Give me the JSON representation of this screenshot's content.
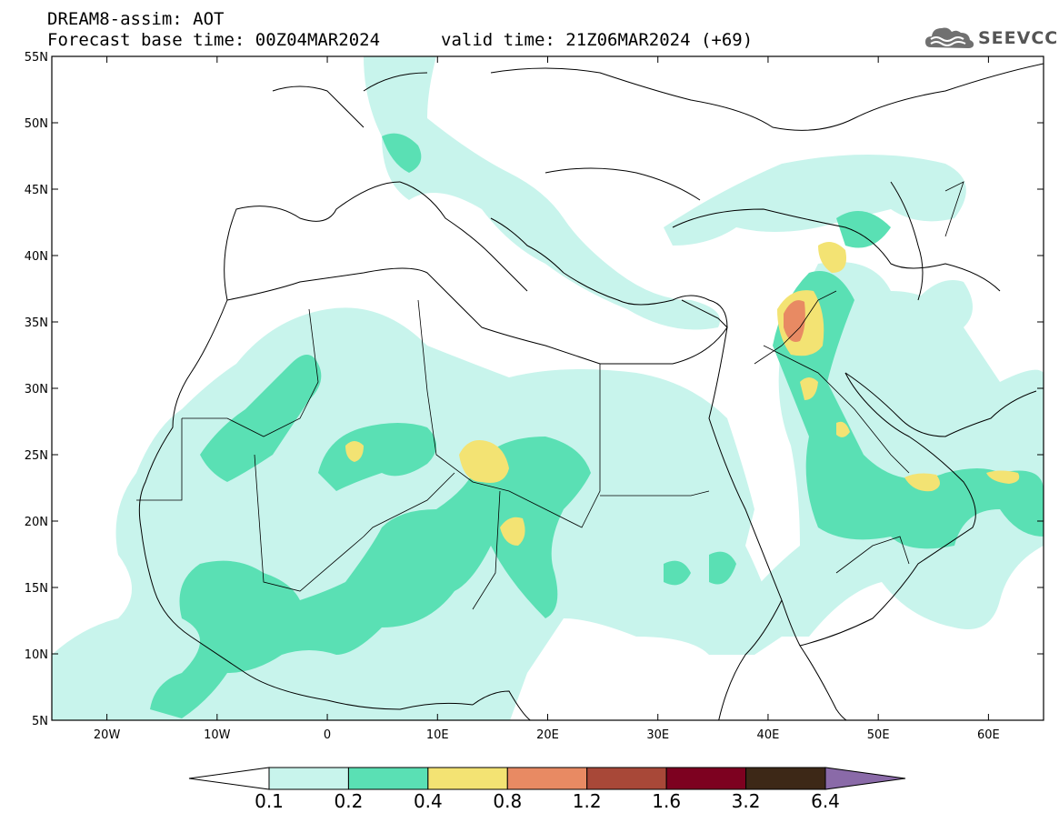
{
  "title_line1": "DREAM8-assim: AOT",
  "title_line2a": "Forecast base time: 00Z04MAR2024",
  "title_line2b": "valid time: 21Z06MAR2024 (+69)",
  "logo": {
    "text": "SEEVCCC",
    "icon": "cloud-icon"
  },
  "map": {
    "lon_range": [
      -25,
      65
    ],
    "lat_range": [
      5,
      55
    ],
    "lat_ticks": [
      {
        "value": 55,
        "label": "55N"
      },
      {
        "value": 50,
        "label": "50N"
      },
      {
        "value": 45,
        "label": "45N"
      },
      {
        "value": 40,
        "label": "40N"
      },
      {
        "value": 35,
        "label": "35N"
      },
      {
        "value": 30,
        "label": "30N"
      },
      {
        "value": 25,
        "label": "25N"
      },
      {
        "value": 20,
        "label": "20N"
      },
      {
        "value": 15,
        "label": "15N"
      },
      {
        "value": 10,
        "label": "10N"
      },
      {
        "value": 5,
        "label": "5N"
      }
    ],
    "lon_ticks": [
      {
        "value": -20,
        "label": "20W"
      },
      {
        "value": -10,
        "label": "10W"
      },
      {
        "value": 0,
        "label": "0"
      },
      {
        "value": 10,
        "label": "10E"
      },
      {
        "value": 20,
        "label": "20E"
      },
      {
        "value": 30,
        "label": "30E"
      },
      {
        "value": 40,
        "label": "40E"
      },
      {
        "value": 50,
        "label": "50E"
      },
      {
        "value": 60,
        "label": "60E"
      }
    ]
  },
  "colorbar": {
    "colors": [
      "#c8f4ec",
      "#5ae0b4",
      "#f3e373",
      "#e88a63",
      "#a84838",
      "#7d0120",
      "#3d2817"
    ],
    "under_color": "#ffffff",
    "over_color": "#8a6aa8",
    "labels": [
      "0.1",
      "0.2",
      "0.4",
      "0.8",
      "1.2",
      "1.6",
      "3.2",
      "6.4"
    ]
  }
}
